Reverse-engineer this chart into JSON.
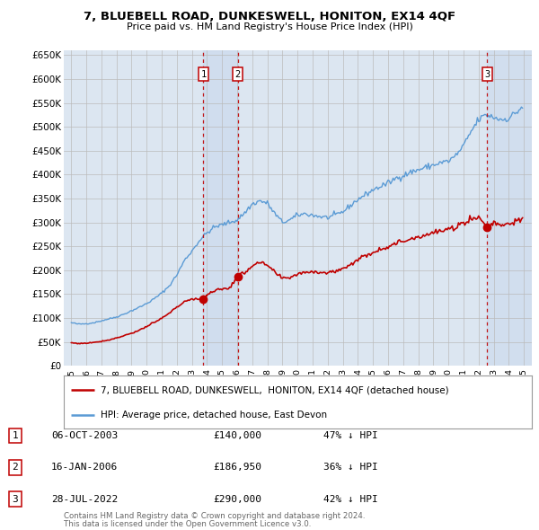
{
  "title": "7, BLUEBELL ROAD, DUNKESWELL, HONITON, EX14 4QF",
  "subtitle": "Price paid vs. HM Land Registry's House Price Index (HPI)",
  "legend_line1": "7, BLUEBELL ROAD, DUNKESWELL,  HONITON, EX14 4QF (detached house)",
  "legend_line2": "HPI: Average price, detached house, East Devon",
  "footer1": "Contains HM Land Registry data © Crown copyright and database right 2024.",
  "footer2": "This data is licensed under the Open Government Licence v3.0.",
  "transactions": [
    {
      "num": 1,
      "date": "06-OCT-2003",
      "price": 140000,
      "price_str": "£140,000",
      "pct": "47%",
      "x_year": 2003.76
    },
    {
      "num": 2,
      "date": "16-JAN-2006",
      "price": 186950,
      "price_str": "£186,950",
      "pct": "36%",
      "x_year": 2006.04
    },
    {
      "num": 3,
      "date": "28-JUL-2022",
      "price": 290000,
      "price_str": "£290,000",
      "pct": "42%",
      "x_year": 2022.57
    }
  ],
  "hpi_color": "#5b9bd5",
  "price_color": "#c00000",
  "vline_color": "#c00000",
  "shade_color": "#dce6f1",
  "background_color": "#dce6f1",
  "grid_color": "#bbbbbb",
  "ylim": [
    0,
    660000
  ],
  "yticks": [
    0,
    50000,
    100000,
    150000,
    200000,
    250000,
    300000,
    350000,
    400000,
    450000,
    500000,
    550000,
    600000,
    650000
  ],
  "xlim_start": 1994.5,
  "xlim_end": 2025.5,
  "xticks": [
    1995,
    1996,
    1997,
    1998,
    1999,
    2000,
    2001,
    2002,
    2003,
    2004,
    2005,
    2006,
    2007,
    2008,
    2009,
    2010,
    2011,
    2012,
    2013,
    2014,
    2015,
    2016,
    2017,
    2018,
    2019,
    2020,
    2021,
    2022,
    2023,
    2024,
    2025
  ]
}
